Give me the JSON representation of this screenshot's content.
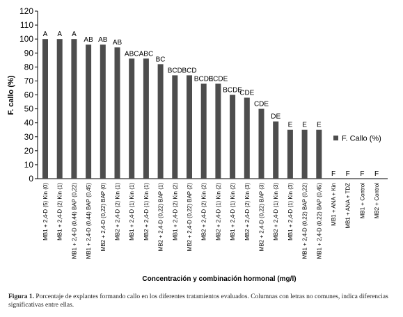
{
  "chart_data": {
    "type": "bar",
    "ylabel": "F. callo (%)",
    "xlabel": "Concentración y combinación hormonal (mg/l)",
    "ylim": [
      0,
      120
    ],
    "yticks": [
      0,
      10,
      20,
      30,
      40,
      50,
      60,
      70,
      80,
      90,
      100,
      110,
      120
    ],
    "grid": false,
    "legend_position": "right",
    "categories": [
      "MB1 + 2,4-D (5) Kin (0)",
      "MB1 + 2,4-D (2) Kin (1)",
      "MB1 + 2,4-D (0,44) BAP (0,22)",
      "MB1 + 2,4-D (0,44) BAP (0,45)",
      "MB2 + 2,4-D (0,22) BAP (0)",
      "MB2 + 2,4-D (2) Kin (1)",
      "MB1 + 2,4-D (1) Kin (1)",
      "MB2 + 2,4-D (1) Kin (1)",
      "MB2 + 2,4-D (0,22) BAP (1)",
      "MB1 + 2,4-D (2) Kin (2)",
      "MB2 + 2,4-D (0,22) BAP (2)",
      "MB2 + 2,4-D (2) Kin (2)",
      "MB2 + 2,4-D (1) Kin (2)",
      "MB1 + 2,4-D (1) Kin (2)",
      "MB2 + 2,4-D (2) Kin (3)",
      "MB2 + 2,4-D (0,22) BAP (3)",
      "MB2 + 2,4-D (1) Kin (3)",
      "MB1 + 2,4-D (1) Kin (3)",
      "MB1 + 2,4-D (0,22) BAP (0,22)",
      "MB1 + 2,4-D (0,22) BAP (0,45)",
      "MB1 + ANA + Kin",
      "MB1 + ANA + TDZ",
      "MB1 + Control",
      "MB2 + Control"
    ],
    "series": [
      {
        "name": "F. Callo (%)",
        "values": [
          100,
          100,
          100,
          96,
          96,
          94,
          86,
          86,
          82,
          74,
          74,
          68,
          68,
          60,
          58,
          50,
          41,
          35,
          35,
          35,
          0,
          0,
          0,
          0
        ]
      }
    ],
    "annotations": [
      "A",
      "A",
      "A",
      "AB",
      "AB",
      "AB",
      "ABC",
      "ABC",
      "BC",
      "BCD",
      "BCD",
      "BCDE",
      "BCDE",
      "BCDE",
      "CDE",
      "CDE",
      "DE",
      "E",
      "E",
      "E",
      "F",
      "F",
      "F",
      "F"
    ],
    "bar_color": "#4d4d4d"
  },
  "caption": {
    "label": "Figura 1.",
    "text": " Porcentaje de explantes formando callo en los diferentes tratamientos evaluados. Columnas con letras no comunes, indica diferencias significativas entre ellas."
  }
}
